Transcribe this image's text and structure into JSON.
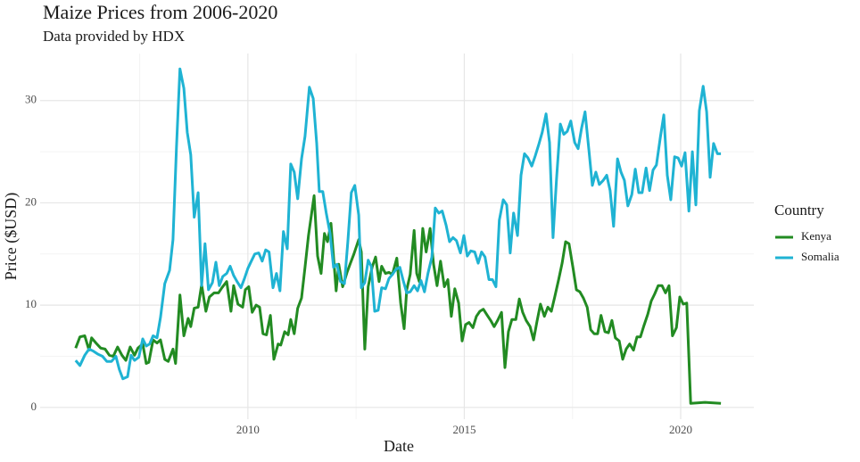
{
  "chart_data": {
    "type": "line",
    "title": "Maize Prices from 2006-2020",
    "subtitle": "Data provided by HDX",
    "x_label": "Date",
    "y_label": "Price ($USD)",
    "legend_title": "Country",
    "legend_position": "right",
    "grid": true,
    "xlim": [
      2005.2,
      2021.69
    ],
    "ylim": [
      -1.15,
      34.6
    ],
    "xticks": [
      2010,
      2015,
      2020
    ],
    "yticks": [
      0,
      10,
      20,
      30
    ],
    "xminorticks": [
      2007.5,
      2012.5,
      2017.5
    ],
    "yminorticks": [
      5,
      15,
      25
    ],
    "series": [
      {
        "name": "Kenya",
        "color": "#228b22",
        "x": [
          2006.02,
          2006.12,
          2006.23,
          2006.33,
          2006.39,
          2006.49,
          2006.6,
          2006.7,
          2006.8,
          2006.89,
          2006.99,
          2007.09,
          2007.18,
          2007.28,
          2007.38,
          2007.46,
          2007.57,
          2007.65,
          2007.71,
          2007.81,
          2007.9,
          2007.98,
          2008.08,
          2008.16,
          2008.27,
          2008.33,
          2008.43,
          2008.52,
          2008.62,
          2008.68,
          2008.76,
          2008.85,
          2008.93,
          2009.03,
          2009.11,
          2009.22,
          2009.32,
          2009.4,
          2009.51,
          2009.61,
          2009.67,
          2009.77,
          2009.88,
          2009.94,
          2010.02,
          2010.1,
          2010.19,
          2010.27,
          2010.35,
          2010.43,
          2010.52,
          2010.6,
          2010.7,
          2010.76,
          2010.85,
          2010.93,
          2010.99,
          2011.07,
          2011.15,
          2011.24,
          2011.32,
          2011.4,
          2011.53,
          2011.61,
          2011.69,
          2011.77,
          2011.84,
          2011.92,
          2012.04,
          2012.1,
          2012.19,
          2012.29,
          2012.37,
          2012.45,
          2012.56,
          2012.62,
          2012.7,
          2012.78,
          2012.87,
          2012.95,
          2013.03,
          2013.09,
          2013.18,
          2013.26,
          2013.34,
          2013.44,
          2013.53,
          2013.61,
          2013.67,
          2013.75,
          2013.84,
          2013.9,
          2013.96,
          2014.04,
          2014.12,
          2014.21,
          2014.29,
          2014.37,
          2014.45,
          2014.54,
          2014.62,
          2014.7,
          2014.78,
          2014.87,
          2014.95,
          2015.03,
          2015.11,
          2015.2,
          2015.28,
          2015.36,
          2015.44,
          2015.53,
          2015.61,
          2015.69,
          2015.77,
          2015.86,
          2015.94,
          2016.02,
          2016.1,
          2016.19,
          2016.27,
          2016.35,
          2016.43,
          2016.52,
          2016.6,
          2016.68,
          2016.76,
          2016.85,
          2016.93,
          2017.01,
          2017.09,
          2017.18,
          2017.26,
          2017.34,
          2017.42,
          2017.51,
          2017.59,
          2017.67,
          2017.75,
          2017.84,
          2017.92,
          2018.0,
          2018.08,
          2018.16,
          2018.25,
          2018.33,
          2018.41,
          2018.49,
          2018.58,
          2018.66,
          2018.74,
          2018.82,
          2018.91,
          2018.99,
          2019.07,
          2019.15,
          2019.24,
          2019.32,
          2019.4,
          2019.48,
          2019.57,
          2019.65,
          2019.73,
          2019.81,
          2019.9,
          2019.98,
          2020.06,
          2020.14,
          2020.23,
          2020.56,
          2020.93
        ],
        "values": [
          5.8,
          6.9,
          7.0,
          5.6,
          6.8,
          6.3,
          5.8,
          5.7,
          5.1,
          5.0,
          5.9,
          5.1,
          4.6,
          5.9,
          5.1,
          5.8,
          6.2,
          4.3,
          4.4,
          6.6,
          6.3,
          6.6,
          4.7,
          4.5,
          5.7,
          4.3,
          11.0,
          7.0,
          8.7,
          7.9,
          9.7,
          9.8,
          12.0,
          9.4,
          10.8,
          11.2,
          11.2,
          11.7,
          12.3,
          9.4,
          11.9,
          10.1,
          9.8,
          11.5,
          11.8,
          9.3,
          10.0,
          9.8,
          7.2,
          7.1,
          9.0,
          4.7,
          6.2,
          6.1,
          7.4,
          7.1,
          8.6,
          7.2,
          9.7,
          10.7,
          13.7,
          16.8,
          20.7,
          14.8,
          13.1,
          17.0,
          16.2,
          18.0,
          11.4,
          14.0,
          11.8,
          13.2,
          14.1,
          15.0,
          16.4,
          15.2,
          5.7,
          11.8,
          13.7,
          14.7,
          12.3,
          13.8,
          13.1,
          13.2,
          13.0,
          14.6,
          10.2,
          7.7,
          11.5,
          13.0,
          17.3,
          13.1,
          12.3,
          17.5,
          15.2,
          17.5,
          14.0,
          11.9,
          14.3,
          11.8,
          12.5,
          8.9,
          11.6,
          10.2,
          6.5,
          8.1,
          8.3,
          7.8,
          8.9,
          9.4,
          9.6,
          9.0,
          8.5,
          7.9,
          8.5,
          9.3,
          3.9,
          7.4,
          8.6,
          8.6,
          10.6,
          9.3,
          8.5,
          7.9,
          6.6,
          8.4,
          10.1,
          8.9,
          9.8,
          9.4,
          10.8,
          12.5,
          14.1,
          16.2,
          16.0,
          13.7,
          11.5,
          11.3,
          10.7,
          9.8,
          7.6,
          7.2,
          7.2,
          9.0,
          7.4,
          7.3,
          8.5,
          6.8,
          6.5,
          4.7,
          5.7,
          6.2,
          5.6,
          6.9,
          6.9,
          8.0,
          9.1,
          10.4,
          11.1,
          11.9,
          11.9,
          11.2,
          11.9,
          7.0,
          7.8,
          10.8,
          10.1,
          10.2,
          0.4,
          0.5,
          0.4
        ]
      },
      {
        "name": "Somalia",
        "color": "#1fb3d3",
        "x": [
          2006.02,
          2006.12,
          2006.23,
          2006.33,
          2006.43,
          2006.54,
          2006.64,
          2006.74,
          2006.85,
          2006.95,
          2007.03,
          2007.11,
          2007.22,
          2007.3,
          2007.38,
          2007.48,
          2007.57,
          2007.65,
          2007.73,
          2007.81,
          2007.9,
          2007.98,
          2008.08,
          2008.19,
          2008.27,
          2008.35,
          2008.43,
          2008.52,
          2008.6,
          2008.68,
          2008.76,
          2008.85,
          2008.93,
          2009.01,
          2009.09,
          2009.18,
          2009.26,
          2009.34,
          2009.42,
          2009.51,
          2009.59,
          2009.67,
          2009.75,
          2009.84,
          2009.92,
          2010.0,
          2010.08,
          2010.16,
          2010.25,
          2010.33,
          2010.41,
          2010.49,
          2010.58,
          2010.66,
          2010.74,
          2010.82,
          2010.91,
          2010.99,
          2011.07,
          2011.15,
          2011.24,
          2011.32,
          2011.42,
          2011.51,
          2011.59,
          2011.65,
          2011.73,
          2011.81,
          2011.9,
          2011.98,
          2012.06,
          2012.14,
          2012.23,
          2012.31,
          2012.39,
          2012.47,
          2012.56,
          2012.62,
          2012.7,
          2012.78,
          2012.85,
          2012.93,
          2013.01,
          2013.09,
          2013.18,
          2013.26,
          2013.34,
          2013.42,
          2013.51,
          2013.59,
          2013.67,
          2013.75,
          2013.84,
          2013.92,
          2014.0,
          2014.08,
          2014.16,
          2014.25,
          2014.33,
          2014.41,
          2014.49,
          2014.58,
          2014.66,
          2014.74,
          2014.82,
          2014.91,
          2014.99,
          2015.07,
          2015.15,
          2015.24,
          2015.32,
          2015.4,
          2015.48,
          2015.57,
          2015.65,
          2015.73,
          2015.81,
          2015.9,
          2015.98,
          2016.06,
          2016.14,
          2016.23,
          2016.31,
          2016.39,
          2016.47,
          2016.56,
          2016.64,
          2016.72,
          2016.8,
          2016.89,
          2016.97,
          2017.05,
          2017.13,
          2017.22,
          2017.3,
          2017.38,
          2017.46,
          2017.55,
          2017.63,
          2017.71,
          2017.79,
          2017.88,
          2017.96,
          2018.04,
          2018.12,
          2018.21,
          2018.29,
          2018.37,
          2018.45,
          2018.54,
          2018.62,
          2018.7,
          2018.78,
          2018.87,
          2018.95,
          2019.03,
          2019.11,
          2019.2,
          2019.28,
          2019.36,
          2019.44,
          2019.53,
          2019.61,
          2019.69,
          2019.77,
          2019.86,
          2019.94,
          2020.02,
          2020.1,
          2020.19,
          2020.27,
          2020.35,
          2020.43,
          2020.52,
          2020.6,
          2020.68,
          2020.76,
          2020.85,
          2020.93
        ],
        "values": [
          4.6,
          4.1,
          5.1,
          5.7,
          5.5,
          5.2,
          5.0,
          4.5,
          4.5,
          5.0,
          3.7,
          2.8,
          3.0,
          5.1,
          4.6,
          4.9,
          6.7,
          6.0,
          6.2,
          7.0,
          6.8,
          8.8,
          12.1,
          13.4,
          16.4,
          25.4,
          33.1,
          31.2,
          26.9,
          24.7,
          18.6,
          21.0,
          11.9,
          16.0,
          11.5,
          12.2,
          14.2,
          11.9,
          12.8,
          13.1,
          13.8,
          12.9,
          12.3,
          11.7,
          12.6,
          13.6,
          14.3,
          15.0,
          15.1,
          14.3,
          15.4,
          15.2,
          11.7,
          13.1,
          11.4,
          17.2,
          15.5,
          23.8,
          23.0,
          20.4,
          24.3,
          26.5,
          31.3,
          30.2,
          25.8,
          21.1,
          21.1,
          19.0,
          17.0,
          13.7,
          14.0,
          12.3,
          12.1,
          16.2,
          21.0,
          21.7,
          18.8,
          11.7,
          12.2,
          14.4,
          13.8,
          9.4,
          9.5,
          11.7,
          11.6,
          12.6,
          13.0,
          13.5,
          13.7,
          12.4,
          11.2,
          11.3,
          11.9,
          11.4,
          12.4,
          11.3,
          13.1,
          14.7,
          19.5,
          19.0,
          19.2,
          17.8,
          16.2,
          16.6,
          16.3,
          15.1,
          16.8,
          14.8,
          15.3,
          15.2,
          14.1,
          15.2,
          14.7,
          12.5,
          12.5,
          11.8,
          18.3,
          20.3,
          19.8,
          15.1,
          19.0,
          16.8,
          22.7,
          24.8,
          24.4,
          23.6,
          24.6,
          25.7,
          26.9,
          28.7,
          25.9,
          16.6,
          22.3,
          27.7,
          26.7,
          27.0,
          28.0,
          25.9,
          25.3,
          27.3,
          28.9,
          25.1,
          21.7,
          23.0,
          21.8,
          22.2,
          22.7,
          21.2,
          17.7,
          24.3,
          23.0,
          22.2,
          19.7,
          20.8,
          23.3,
          21.0,
          21.0,
          23.4,
          21.2,
          23.2,
          23.7,
          26.4,
          28.6,
          22.7,
          20.3,
          24.5,
          24.4,
          23.6,
          24.9,
          19.2,
          25.0,
          19.8,
          29.0,
          31.4,
          28.9,
          22.5,
          25.8,
          24.8,
          24.8
        ]
      }
    ]
  }
}
